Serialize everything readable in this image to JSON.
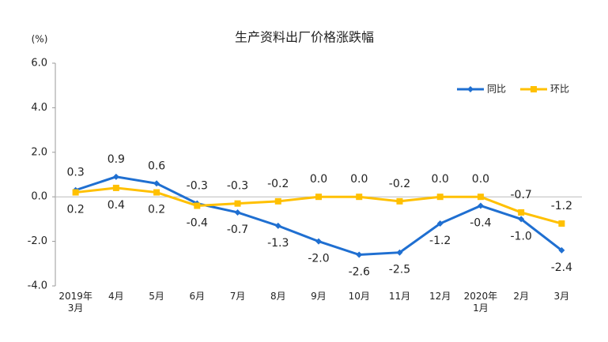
{
  "chart_data": {
    "type": "line",
    "title": "生产资料出厂价格涨跌幅",
    "y_label": "(%)",
    "categories": [
      "2019年\n3月",
      "4月",
      "5月",
      "6月",
      "7月",
      "8月",
      "9月",
      "10月",
      "11月",
      "12月",
      "2020年\n1月",
      "2月",
      "3月"
    ],
    "series": [
      {
        "name": "同比",
        "color": "#1f6fd1",
        "values": [
          0.3,
          0.9,
          0.6,
          -0.3,
          -0.7,
          -1.3,
          -2.0,
          -2.6,
          -2.5,
          -1.2,
          -0.4,
          -1.0,
          -2.4
        ],
        "value_labels": [
          "0.3",
          "0.9",
          "0.6",
          "-0.3",
          "-0.7",
          "-1.3",
          "-2.0",
          "-2.6",
          "-2.5",
          "-1.2",
          "-0.4",
          "-1.0",
          "-2.4"
        ]
      },
      {
        "name": "环比",
        "color": "#ffc000",
        "values": [
          0.2,
          0.4,
          0.2,
          -0.4,
          -0.3,
          -0.2,
          0.0,
          0.0,
          -0.2,
          0.0,
          0.0,
          -0.7,
          -1.2
        ],
        "value_labels": [
          "0.2",
          "0.4",
          "0.2",
          "-0.4",
          "-0.3",
          "-0.2",
          "0.0",
          "0.0",
          "-0.2",
          "0.0",
          "0.0",
          "-0.7",
          "-1.2"
        ]
      }
    ],
    "ylim": [
      -4,
      6
    ],
    "yticks": [
      {
        "value": -4,
        "label": "-4.0"
      },
      {
        "value": -2,
        "label": "-2.0"
      },
      {
        "value": 0,
        "label": "0.0"
      },
      {
        "value": 2,
        "label": "2.0"
      },
      {
        "value": 4,
        "label": "4.0"
      },
      {
        "value": 6,
        "label": "6.0"
      }
    ],
    "legend": "top-right"
  }
}
